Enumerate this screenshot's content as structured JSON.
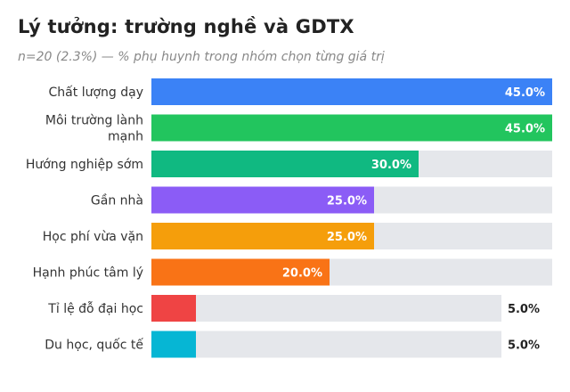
{
  "header": {
    "title": "Lý tưởng: trường nghề và GDTX",
    "subtitle": "n=20 (2.3%) — % phụ huynh trong nhóm chọn từng giá trị"
  },
  "chart_data": {
    "type": "bar",
    "orientation": "horizontal",
    "unit": "%",
    "xlim": [
      0,
      45
    ],
    "grid": false,
    "categories": [
      [
        "Chất lượng dạy"
      ],
      [
        "Môi trường lành",
        "mạnh"
      ],
      [
        "Hướng nghiệp sớm"
      ],
      [
        "Gần nhà"
      ],
      [
        "Học phí vừa vặn"
      ],
      [
        "Hạnh phúc tâm lý"
      ],
      [
        "Tỉ lệ đỗ đại học"
      ],
      [
        "Du học, quốc tế"
      ]
    ],
    "values": [
      45.0,
      45.0,
      30.0,
      25.0,
      25.0,
      20.0,
      5.0,
      5.0
    ],
    "value_labels": [
      "45.0%",
      "45.0%",
      "30.0%",
      "25.0%",
      "25.0%",
      "20.0%",
      "5.0%",
      "5.0%"
    ],
    "colors": [
      "#3b82f6",
      "#22c55e",
      "#10b981",
      "#8b5cf6",
      "#f59e0b",
      "#f97316",
      "#ef4444",
      "#06b6d4"
    ],
    "track_color": "#e5e7eb"
  }
}
